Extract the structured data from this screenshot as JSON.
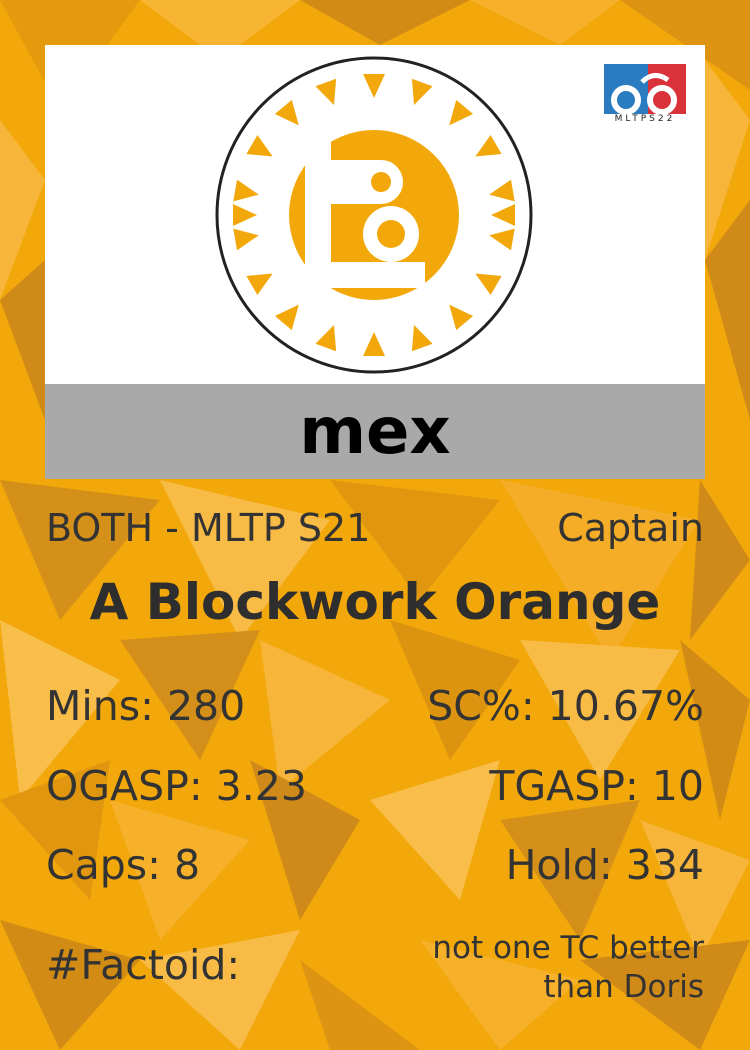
{
  "card": {
    "player_name": "mex",
    "subtitle_left": "BOTH - MLTP S21",
    "subtitle_right": "Captain",
    "team_name": "A Blockwork Orange",
    "league_logo_text": "MLTPS22",
    "accent_color": "#f2a80a"
  },
  "stats": {
    "mins": "Mins: 280",
    "sc": "SC%: 10.67%",
    "ogasp": "OGASP: 3.23",
    "tgasp": "TGASP: 10",
    "caps": "Caps: 8",
    "hold": "Hold: 334"
  },
  "factoid": {
    "label": "#Factoid:",
    "line1": "not one TC better",
    "line2": "than Doris"
  }
}
